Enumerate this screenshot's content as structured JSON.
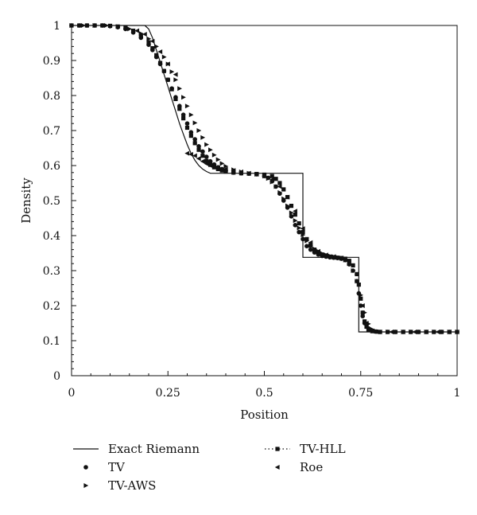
{
  "chart_data": {
    "type": "scatter",
    "title": "",
    "xlabel": "Position",
    "ylabel": "Density",
    "xlim": [
      0,
      1
    ],
    "ylim": [
      0,
      1
    ],
    "xticks": [
      {
        "value": 0,
        "label": "0"
      },
      {
        "value": 0.25,
        "label": "0.25"
      },
      {
        "value": 0.5,
        "label": "0.5"
      },
      {
        "value": 0.75,
        "label": "0.75"
      },
      {
        "value": 1,
        "label": "1"
      }
    ],
    "yticks": [
      {
        "value": 0,
        "label": "0"
      },
      {
        "value": 0.1,
        "label": "0.1"
      },
      {
        "value": 0.2,
        "label": "0.2"
      },
      {
        "value": 0.3,
        "label": "0.3"
      },
      {
        "value": 0.4,
        "label": "0.4"
      },
      {
        "value": 0.5,
        "label": "0.5"
      },
      {
        "value": 0.6,
        "label": "0.6"
      },
      {
        "value": 0.7,
        "label": "0.7"
      },
      {
        "value": 0.8,
        "label": "0.8"
      },
      {
        "value": 0.9,
        "label": "0.9"
      },
      {
        "value": 1,
        "label": "1"
      }
    ],
    "grid": false,
    "legend_position": "bottom",
    "series": [
      {
        "name": "Exact Riemann",
        "marker": "line",
        "points": [
          [
            0,
            1
          ],
          [
            0.19,
            1
          ],
          [
            0.2,
            0.99
          ],
          [
            0.21,
            0.965
          ],
          [
            0.22,
            0.93
          ],
          [
            0.23,
            0.895
          ],
          [
            0.24,
            0.86
          ],
          [
            0.25,
            0.825
          ],
          [
            0.26,
            0.79
          ],
          [
            0.27,
            0.755
          ],
          [
            0.28,
            0.72
          ],
          [
            0.29,
            0.69
          ],
          [
            0.3,
            0.66
          ],
          [
            0.31,
            0.635
          ],
          [
            0.32,
            0.615
          ],
          [
            0.33,
            0.6
          ],
          [
            0.34,
            0.59
          ],
          [
            0.35,
            0.583
          ],
          [
            0.36,
            0.578
          ],
          [
            0.37,
            0.578
          ],
          [
            0.6,
            0.578
          ],
          [
            0.6,
            0.338
          ],
          [
            0.745,
            0.338
          ],
          [
            0.745,
            0.125
          ],
          [
            1,
            0.125
          ]
        ]
      },
      {
        "name": "TV",
        "marker": "circle",
        "points": [
          [
            0,
            1
          ],
          [
            0.02,
            1
          ],
          [
            0.04,
            1
          ],
          [
            0.06,
            1
          ],
          [
            0.08,
            1
          ],
          [
            0.1,
            0.998
          ],
          [
            0.12,
            0.995
          ],
          [
            0.14,
            0.99
          ],
          [
            0.16,
            0.98
          ],
          [
            0.18,
            0.965
          ],
          [
            0.2,
            0.945
          ],
          [
            0.21,
            0.93
          ],
          [
            0.22,
            0.91
          ],
          [
            0.23,
            0.89
          ],
          [
            0.24,
            0.87
          ],
          [
            0.25,
            0.845
          ],
          [
            0.26,
            0.82
          ],
          [
            0.27,
            0.795
          ],
          [
            0.28,
            0.77
          ],
          [
            0.29,
            0.745
          ],
          [
            0.3,
            0.72
          ],
          [
            0.31,
            0.695
          ],
          [
            0.32,
            0.675
          ],
          [
            0.33,
            0.655
          ],
          [
            0.34,
            0.64
          ],
          [
            0.35,
            0.625
          ],
          [
            0.36,
            0.612
          ],
          [
            0.37,
            0.603
          ],
          [
            0.38,
            0.595
          ],
          [
            0.39,
            0.59
          ],
          [
            0.4,
            0.585
          ],
          [
            0.42,
            0.58
          ],
          [
            0.44,
            0.578
          ],
          [
            0.46,
            0.577
          ],
          [
            0.48,
            0.575
          ],
          [
            0.5,
            0.57
          ],
          [
            0.51,
            0.565
          ],
          [
            0.52,
            0.555
          ],
          [
            0.53,
            0.54
          ],
          [
            0.54,
            0.52
          ],
          [
            0.55,
            0.5
          ],
          [
            0.56,
            0.48
          ],
          [
            0.57,
            0.455
          ],
          [
            0.58,
            0.43
          ],
          [
            0.59,
            0.41
          ],
          [
            0.6,
            0.39
          ],
          [
            0.61,
            0.37
          ],
          [
            0.62,
            0.36
          ],
          [
            0.63,
            0.352
          ],
          [
            0.64,
            0.346
          ],
          [
            0.65,
            0.342
          ],
          [
            0.66,
            0.34
          ],
          [
            0.67,
            0.338
          ],
          [
            0.68,
            0.337
          ],
          [
            0.69,
            0.336
          ],
          [
            0.7,
            0.334
          ],
          [
            0.71,
            0.33
          ],
          [
            0.72,
            0.318
          ],
          [
            0.73,
            0.3
          ],
          [
            0.74,
            0.27
          ],
          [
            0.745,
            0.235
          ],
          [
            0.75,
            0.2
          ],
          [
            0.755,
            0.17
          ],
          [
            0.76,
            0.15
          ],
          [
            0.77,
            0.135
          ],
          [
            0.78,
            0.128
          ],
          [
            0.79,
            0.126
          ],
          [
            0.8,
            0.125
          ],
          [
            0.82,
            0.125
          ],
          [
            0.84,
            0.125
          ],
          [
            0.86,
            0.125
          ],
          [
            0.88,
            0.125
          ],
          [
            0.9,
            0.125
          ],
          [
            0.92,
            0.125
          ],
          [
            0.94,
            0.125
          ],
          [
            0.96,
            0.125
          ],
          [
            0.98,
            0.125
          ],
          [
            1,
            0.125
          ]
        ]
      },
      {
        "name": "TV-HLL",
        "marker": "square",
        "points": [
          [
            0,
            1
          ],
          [
            0.02,
            1
          ],
          [
            0.04,
            1
          ],
          [
            0.06,
            1
          ],
          [
            0.08,
            1
          ],
          [
            0.1,
            0.999
          ],
          [
            0.12,
            0.997
          ],
          [
            0.14,
            0.993
          ],
          [
            0.16,
            0.985
          ],
          [
            0.18,
            0.972
          ],
          [
            0.2,
            0.952
          ],
          [
            0.21,
            0.935
          ],
          [
            0.22,
            0.915
          ],
          [
            0.23,
            0.893
          ],
          [
            0.24,
            0.87
          ],
          [
            0.25,
            0.845
          ],
          [
            0.26,
            0.818
          ],
          [
            0.27,
            0.79
          ],
          [
            0.28,
            0.762
          ],
          [
            0.29,
            0.735
          ],
          [
            0.3,
            0.708
          ],
          [
            0.31,
            0.685
          ],
          [
            0.32,
            0.664
          ],
          [
            0.33,
            0.645
          ],
          [
            0.34,
            0.628
          ],
          [
            0.35,
            0.613
          ],
          [
            0.36,
            0.602
          ],
          [
            0.37,
            0.595
          ],
          [
            0.38,
            0.59
          ],
          [
            0.39,
            0.586
          ],
          [
            0.4,
            0.583
          ],
          [
            0.42,
            0.58
          ],
          [
            0.44,
            0.578
          ],
          [
            0.46,
            0.577
          ],
          [
            0.48,
            0.576
          ],
          [
            0.5,
            0.574
          ],
          [
            0.52,
            0.57
          ],
          [
            0.53,
            0.562
          ],
          [
            0.54,
            0.55
          ],
          [
            0.55,
            0.532
          ],
          [
            0.56,
            0.51
          ],
          [
            0.57,
            0.485
          ],
          [
            0.58,
            0.46
          ],
          [
            0.59,
            0.435
          ],
          [
            0.6,
            0.41
          ],
          [
            0.61,
            0.39
          ],
          [
            0.62,
            0.372
          ],
          [
            0.63,
            0.36
          ],
          [
            0.64,
            0.352
          ],
          [
            0.65,
            0.346
          ],
          [
            0.66,
            0.342
          ],
          [
            0.67,
            0.34
          ],
          [
            0.68,
            0.338
          ],
          [
            0.69,
            0.337
          ],
          [
            0.7,
            0.336
          ],
          [
            0.71,
            0.334
          ],
          [
            0.72,
            0.328
          ],
          [
            0.73,
            0.315
          ],
          [
            0.74,
            0.29
          ],
          [
            0.745,
            0.26
          ],
          [
            0.75,
            0.22
          ],
          [
            0.755,
            0.18
          ],
          [
            0.76,
            0.155
          ],
          [
            0.765,
            0.14
          ],
          [
            0.77,
            0.132
          ],
          [
            0.78,
            0.127
          ],
          [
            0.79,
            0.126
          ],
          [
            0.8,
            0.125
          ],
          [
            0.82,
            0.125
          ],
          [
            0.84,
            0.125
          ],
          [
            0.86,
            0.125
          ],
          [
            0.88,
            0.125
          ],
          [
            0.9,
            0.125
          ],
          [
            0.92,
            0.125
          ],
          [
            0.94,
            0.125
          ],
          [
            0.96,
            0.125
          ],
          [
            0.98,
            0.125
          ],
          [
            1,
            0.125
          ]
        ]
      },
      {
        "name": "TV-AWS",
        "marker": "triangle-right",
        "points": [
          [
            0,
            1
          ],
          [
            0.03,
            1
          ],
          [
            0.06,
            1
          ],
          [
            0.09,
            1
          ],
          [
            0.12,
            0.997
          ],
          [
            0.15,
            0.99
          ],
          [
            0.18,
            0.977
          ],
          [
            0.2,
            0.962
          ],
          [
            0.22,
            0.94
          ],
          [
            0.24,
            0.91
          ],
          [
            0.25,
            0.89
          ],
          [
            0.26,
            0.868
          ],
          [
            0.27,
            0.845
          ],
          [
            0.28,
            0.82
          ],
          [
            0.29,
            0.795
          ],
          [
            0.3,
            0.77
          ],
          [
            0.31,
            0.745
          ],
          [
            0.32,
            0.722
          ],
          [
            0.33,
            0.7
          ],
          [
            0.34,
            0.68
          ],
          [
            0.35,
            0.66
          ],
          [
            0.36,
            0.645
          ],
          [
            0.37,
            0.63
          ],
          [
            0.38,
            0.617
          ],
          [
            0.39,
            0.606
          ],
          [
            0.4,
            0.598
          ],
          [
            0.42,
            0.588
          ],
          [
            0.44,
            0.582
          ],
          [
            0.46,
            0.578
          ],
          [
            0.48,
            0.575
          ],
          [
            0.5,
            0.57
          ],
          [
            0.51,
            0.563
          ],
          [
            0.52,
            0.553
          ],
          [
            0.53,
            0.54
          ],
          [
            0.54,
            0.523
          ],
          [
            0.55,
            0.505
          ],
          [
            0.56,
            0.485
          ],
          [
            0.57,
            0.465
          ],
          [
            0.58,
            0.443
          ],
          [
            0.59,
            0.422
          ],
          [
            0.6,
            0.402
          ],
          [
            0.61,
            0.385
          ],
          [
            0.62,
            0.372
          ],
          [
            0.63,
            0.362
          ],
          [
            0.64,
            0.355
          ],
          [
            0.65,
            0.349
          ],
          [
            0.66,
            0.345
          ],
          [
            0.67,
            0.342
          ],
          [
            0.68,
            0.34
          ],
          [
            0.69,
            0.338
          ],
          [
            0.7,
            0.335
          ],
          [
            0.71,
            0.33
          ],
          [
            0.72,
            0.32
          ],
          [
            0.73,
            0.3
          ],
          [
            0.74,
            0.27
          ],
          [
            0.75,
            0.23
          ],
          [
            0.76,
            0.18
          ],
          [
            0.77,
            0.148
          ],
          [
            0.78,
            0.132
          ],
          [
            0.79,
            0.127
          ],
          [
            0.8,
            0.125
          ],
          [
            0.82,
            0.125
          ],
          [
            0.84,
            0.125
          ],
          [
            0.86,
            0.125
          ],
          [
            0.88,
            0.125
          ],
          [
            0.9,
            0.125
          ],
          [
            0.92,
            0.125
          ],
          [
            0.94,
            0.125
          ],
          [
            0.96,
            0.125
          ],
          [
            0.98,
            0.125
          ],
          [
            1,
            0.125
          ]
        ]
      },
      {
        "name": "Roe",
        "marker": "triangle-left",
        "points": [
          [
            0.17,
            0.985
          ],
          [
            0.19,
            0.975
          ],
          [
            0.21,
            0.955
          ],
          [
            0.23,
            0.925
          ],
          [
            0.25,
            0.89
          ],
          [
            0.27,
            0.86
          ],
          [
            0.3,
            0.635
          ],
          [
            0.31,
            0.632
          ],
          [
            0.32,
            0.628
          ],
          [
            0.33,
            0.62
          ],
          [
            0.34,
            0.612
          ],
          [
            0.35,
            0.605
          ],
          [
            0.36,
            0.6
          ],
          [
            0.37,
            0.597
          ],
          [
            0.38,
            0.594
          ],
          [
            0.4,
            0.59
          ],
          [
            0.42,
            0.586
          ],
          [
            0.44,
            0.582
          ],
          [
            0.46,
            0.578
          ],
          [
            0.48,
            0.575
          ],
          [
            0.5,
            0.57
          ],
          [
            0.52,
            0.56
          ],
          [
            0.54,
            0.54
          ],
          [
            0.56,
            0.51
          ],
          [
            0.58,
            0.47
          ],
          [
            0.6,
            0.42
          ],
          [
            0.62,
            0.38
          ],
          [
            0.64,
            0.355
          ],
          [
            0.66,
            0.345
          ],
          [
            0.68,
            0.34
          ],
          [
            0.7,
            0.336
          ],
          [
            0.72,
            0.325
          ],
          [
            0.74,
            0.29
          ],
          [
            0.755,
            0.2
          ],
          [
            0.765,
            0.15
          ],
          [
            0.78,
            0.128
          ],
          [
            0.8,
            0.125
          ],
          [
            0.83,
            0.125
          ],
          [
            0.86,
            0.125
          ],
          [
            0.89,
            0.125
          ],
          [
            0.92,
            0.125
          ],
          [
            0.95,
            0.125
          ],
          [
            0.98,
            0.125
          ],
          [
            1,
            0.125
          ]
        ]
      }
    ]
  }
}
